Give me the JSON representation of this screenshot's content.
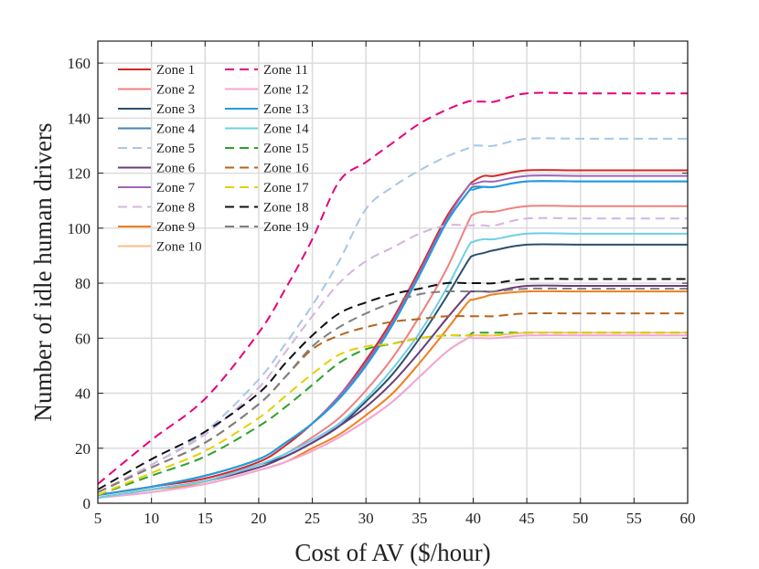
{
  "chart_data": {
    "type": "line",
    "title": "",
    "xlabel": "Cost of AV ($/hour)",
    "ylabel": "Number of idle human drivers",
    "xlim": [
      5,
      60
    ],
    "ylim": [
      0,
      168
    ],
    "xticks": [
      5,
      10,
      15,
      20,
      25,
      30,
      35,
      40,
      45,
      50,
      55,
      60
    ],
    "yticks": [
      0,
      20,
      40,
      60,
      80,
      100,
      120,
      140,
      160
    ],
    "grid": true,
    "legend_position": "top-left",
    "x": [
      5,
      10,
      15,
      20,
      22.5,
      25,
      27.5,
      30,
      32.5,
      35,
      37.5,
      39.5,
      40,
      41,
      42,
      45,
      50,
      55,
      60
    ],
    "series": [
      {
        "name": "Zone 1",
        "color": "#d62728",
        "dash": "solid",
        "values": [
          3,
          6,
          9,
          15,
          21,
          29,
          39,
          52,
          67,
          85,
          104,
          115,
          117,
          119,
          119,
          121,
          121,
          121,
          121
        ]
      },
      {
        "name": "Zone 2",
        "color": "#f08080",
        "dash": "solid",
        "values": [
          2,
          5,
          8,
          14,
          18,
          24,
          31,
          41,
          53,
          68,
          85,
          102,
          105,
          106,
          106,
          108,
          108,
          108,
          108
        ]
      },
      {
        "name": "Zone 3",
        "color": "#2c4f6e",
        "dash": "solid",
        "values": [
          2,
          5,
          8,
          14,
          17,
          22,
          28,
          37,
          47,
          60,
          75,
          88,
          90,
          91,
          92,
          94,
          94,
          94,
          94
        ]
      },
      {
        "name": "Zone 4",
        "color": "#4682b4",
        "dash": "solid",
        "values": [
          3,
          6,
          10,
          16,
          22,
          29,
          38,
          50,
          65,
          83,
          102,
          113,
          115,
          115,
          115,
          117,
          117,
          117,
          117
        ]
      },
      {
        "name": "Zone 5",
        "color": "#a7c7e7",
        "dash": "dash",
        "values": [
          4,
          14,
          26,
          45,
          58,
          72,
          88,
          107,
          115,
          121,
          126,
          129,
          130,
          130,
          130,
          132.5,
          132.5,
          132.5,
          132.5
        ]
      },
      {
        "name": "Zone 6",
        "color": "#6a3d7a",
        "dash": "solid",
        "values": [
          2,
          5,
          8,
          13,
          17,
          22,
          28,
          35,
          44,
          55,
          67,
          76,
          77,
          77,
          77,
          79,
          79,
          79,
          79
        ]
      },
      {
        "name": "Zone 7",
        "color": "#a066b3",
        "dash": "solid",
        "values": [
          3,
          6,
          10,
          16,
          22,
          29,
          39,
          51,
          66,
          84,
          103,
          115,
          116,
          117,
          117,
          119,
          119,
          119,
          119
        ]
      },
      {
        "name": "Zone 8",
        "color": "#d4b4e0",
        "dash": "dash",
        "values": [
          4,
          14,
          25,
          42,
          55,
          68,
          80,
          88,
          93,
          98,
          101,
          101,
          101,
          101,
          101,
          103.5,
          103.5,
          103.5,
          103.5
        ]
      },
      {
        "name": "Zone 9",
        "color": "#f07f1d",
        "dash": "solid",
        "values": [
          2,
          5,
          7,
          12,
          15,
          20,
          25,
          32,
          40,
          51,
          63,
          73,
          74,
          75,
          76,
          77,
          77,
          77,
          77
        ]
      },
      {
        "name": "Zone 10",
        "color": "#f5c08a",
        "dash": "solid",
        "values": [
          2,
          4,
          7,
          12,
          15,
          19,
          24,
          30,
          37,
          46,
          55,
          60,
          61,
          61,
          61,
          62,
          62,
          62,
          62
        ]
      },
      {
        "name": "Zone 11",
        "color": "#e6007e",
        "dash": "dash",
        "values": [
          7,
          23,
          38,
          62,
          78,
          96,
          117,
          124,
          131,
          138,
          143,
          146,
          146,
          146,
          146,
          149,
          149,
          149,
          149
        ]
      },
      {
        "name": "Zone 12",
        "color": "#f2a6d6",
        "dash": "solid",
        "values": [
          2,
          4,
          7,
          12,
          15,
          19,
          24,
          30,
          37,
          46,
          55,
          60,
          60,
          60,
          60,
          61,
          61,
          61,
          61
        ]
      },
      {
        "name": "Zone 13",
        "color": "#1f9de0",
        "dash": "solid",
        "values": [
          3,
          6,
          10,
          16,
          22,
          29,
          38,
          50,
          65,
          83,
          102,
          113,
          114,
          115,
          115,
          117,
          117,
          117,
          117
        ]
      },
      {
        "name": "Zone 14",
        "color": "#6ecfe6",
        "dash": "solid",
        "values": [
          2,
          5,
          8,
          14,
          18,
          23,
          29,
          38,
          49,
          62,
          78,
          93,
          95,
          96,
          96,
          98,
          98,
          98,
          98
        ]
      },
      {
        "name": "Zone 15",
        "color": "#2ca02c",
        "dash": "dash",
        "values": [
          3,
          10,
          17,
          28,
          35,
          43,
          51,
          56,
          58,
          60,
          61,
          61,
          62,
          62,
          62,
          62,
          62,
          62,
          62
        ]
      },
      {
        "name": "Zone 16",
        "color": "#b5651d",
        "dash": "dash",
        "values": [
          4,
          13,
          22,
          36,
          46,
          56,
          61,
          64,
          66,
          67,
          68,
          68,
          68,
          68,
          68,
          69,
          69,
          69,
          69
        ]
      },
      {
        "name": "Zone 17",
        "color": "#e6d000",
        "dash": "dash",
        "values": [
          3,
          11,
          19,
          31,
          39,
          47,
          54,
          57,
          58,
          60,
          61,
          61,
          61,
          61,
          61,
          62,
          62,
          62,
          62
        ]
      },
      {
        "name": "Zone 18",
        "color": "#111111",
        "dash": "dash",
        "values": [
          5,
          16,
          26,
          40,
          51,
          61,
          69,
          73,
          76,
          78,
          80,
          80,
          80,
          80,
          80,
          81.5,
          81.5,
          81.5,
          81.5
        ]
      },
      {
        "name": "Zone 19",
        "color": "#7f7f7f",
        "dash": "dash",
        "values": [
          4,
          13,
          22,
          36,
          46,
          57,
          64,
          69,
          73,
          76,
          77,
          77,
          77,
          77,
          77,
          78,
          78,
          78,
          78
        ]
      }
    ]
  }
}
